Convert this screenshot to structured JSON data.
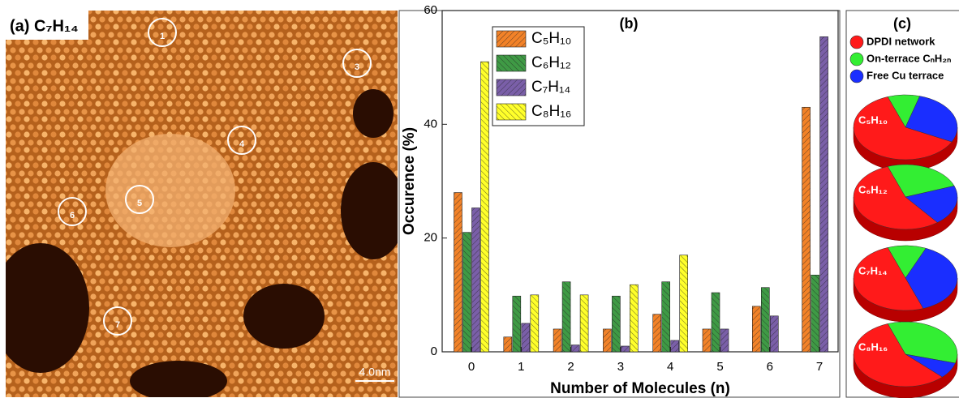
{
  "panel_a": {
    "label": "(a) C₇H₁₄",
    "markers": [
      "1",
      "3",
      "4",
      "5",
      "6",
      "7"
    ],
    "scale_bar": "4.0nm"
  },
  "chart_data": [
    {
      "type": "bar",
      "title": "(b)",
      "xlabel": "Number of Molecules (n)",
      "ylabel": "Occurence (%)",
      "categories": [
        "0",
        "1",
        "2",
        "3",
        "4",
        "5",
        "6",
        "7"
      ],
      "series": [
        {
          "name": "C₅H₁₀",
          "color": "#f28228",
          "values": [
            28,
            2.6,
            4,
            4,
            6.6,
            4,
            8,
            43
          ]
        },
        {
          "name": "C₆H₁₂",
          "color": "#3f9a45",
          "values": [
            21,
            9.8,
            12.3,
            9.8,
            12.3,
            10.4,
            11.3,
            13.5
          ]
        },
        {
          "name": "C₇H₁₄",
          "color": "#7a5fa8",
          "values": [
            25.3,
            5,
            1.2,
            1,
            2,
            4,
            6.3,
            55.4
          ]
        },
        {
          "name": "C₈H₁₆",
          "color": "#ffff2a",
          "values": [
            51,
            10,
            10,
            11.8,
            17,
            0,
            0,
            0
          ]
        }
      ],
      "ylim": [
        0,
        60
      ],
      "yticks": [
        0,
        20,
        40,
        60
      ],
      "legend": "upper left"
    },
    {
      "type": "pie",
      "title": "(c)",
      "categories": [
        "DPDI network",
        "On-terrace CₙH₂ₙ",
        "Free Cu terrace"
      ],
      "colors": [
        "#ff1a1a",
        "#33ee33",
        "#1a2eff"
      ],
      "pies": [
        {
          "label": "C₅H₁₀",
          "values": [
            62,
            10,
            28
          ]
        },
        {
          "label": "C₆H₁₂",
          "values": [
            55,
            25,
            20
          ]
        },
        {
          "label": "C₇H₁₄",
          "values": [
            50,
            12,
            38
          ]
        },
        {
          "label": "C₈H₁₆",
          "values": [
            57,
            35,
            8
          ]
        }
      ]
    }
  ]
}
